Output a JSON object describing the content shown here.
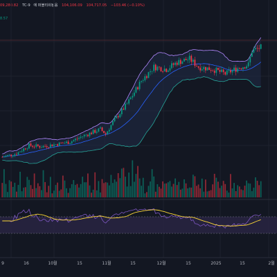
{
  "header": {
    "symbol_fragment": "TC-9",
    "exchange_fragment": "에 퍼블리쉬됨음",
    "ohlc_fragment": "09,280.82",
    "low_value": "104,106.09",
    "close_value": "104,717.05",
    "change_value": "−103.46 (−0.10%)",
    "side_value": "8.57"
  },
  "x_axis": {
    "tick_labels": [
      "9",
      "16",
      "10월",
      "15",
      "11월",
      "15",
      "12월",
      "15",
      "2025",
      "15",
      "2월"
    ]
  },
  "colors": {
    "background": "#131722",
    "grid": "#1e222d",
    "up": "#089981",
    "down": "#f23645",
    "band": "#b388ff",
    "band_fill": "#1f2a44",
    "mid_line": "#2962ff",
    "rsi_line": "#7e57c2",
    "rsi_ma": "#fdd835",
    "rsi_band": "#2a2545"
  },
  "chart_data": {
    "type": "candlestick",
    "price_seed": {
      "start": 57000,
      "levels": [
        [
          0,
          57000
        ],
        [
          8,
          58500
        ],
        [
          15,
          62000
        ],
        [
          22,
          61500
        ],
        [
          30,
          62500
        ],
        [
          38,
          63500
        ],
        [
          45,
          66000
        ],
        [
          55,
          69000
        ],
        [
          58,
          67000
        ],
        [
          62,
          72000
        ],
        [
          70,
          80000
        ],
        [
          78,
          90000
        ],
        [
          85,
          96000
        ],
        [
          92,
          95000
        ],
        [
          98,
          98000
        ],
        [
          105,
          99500
        ],
        [
          110,
          96000
        ],
        [
          118,
          95000
        ],
        [
          125,
          93000
        ],
        [
          132,
          95500
        ],
        [
          138,
          97000
        ],
        [
          140,
          103000
        ],
        [
          146,
          104700
        ]
      ]
    },
    "series_count": 146,
    "indicators": [
      "bollinger_bands",
      "volume",
      "rsi"
    ],
    "rsi_levels": [
      30,
      70
    ]
  }
}
